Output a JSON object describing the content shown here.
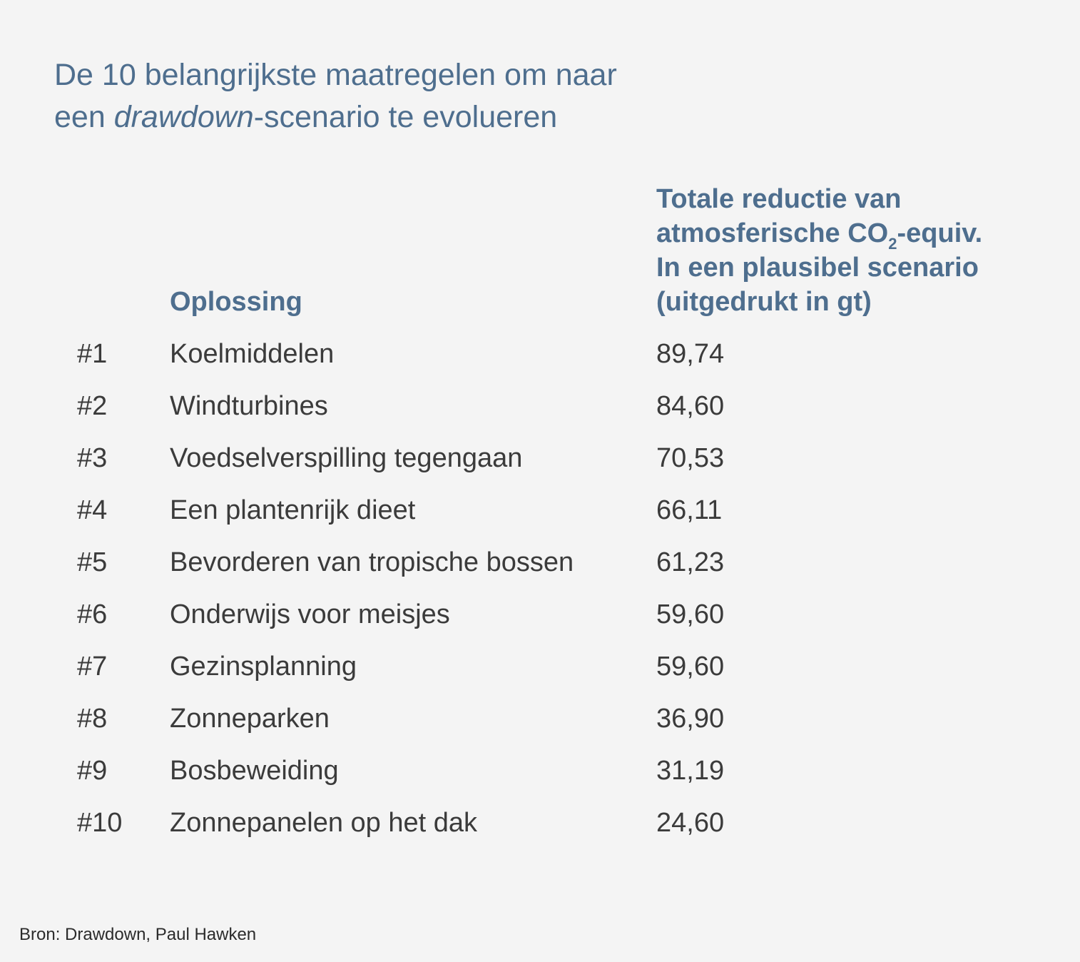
{
  "title": {
    "line1": "De 10 belangrijkste maatregelen om naar",
    "line2_pre": "een ",
    "line2_em": "drawdown",
    "line2_post": "-scenario te evolueren"
  },
  "table": {
    "header_solution": "Oplossing",
    "header_value": {
      "line1": "Totale reductie van",
      "line2_pre": "atmosferische CO",
      "line2_sub": "2",
      "line2_post": "-equiv.",
      "line3": "In een plausibel scenario",
      "line4": "(uitgedrukt in gt)"
    },
    "rows": [
      {
        "rank": "#1",
        "name": "Koelmiddelen",
        "value": "89,74"
      },
      {
        "rank": "#2",
        "name": "Windturbines",
        "value": "84,60"
      },
      {
        "rank": "#3",
        "name": "Voedselverspilling tegengaan",
        "value": "70,53"
      },
      {
        "rank": "#4",
        "name": "Een plantenrijk dieet",
        "value": "66,11"
      },
      {
        "rank": "#5",
        "name": "Bevorderen van tropische bossen",
        "value": "61,23"
      },
      {
        "rank": "#6",
        "name": "Onderwijs voor meisjes",
        "value": "59,60"
      },
      {
        "rank": "#7",
        "name": "Gezinsplanning",
        "value": "59,60"
      },
      {
        "rank": "#8",
        "name": "Zonneparken",
        "value": "36,90"
      },
      {
        "rank": "#9",
        "name": "Bosbeweiding",
        "value": "31,19"
      },
      {
        "rank": "#10",
        "name": "Zonnepanelen op het dak",
        "value": "24,60"
      }
    ]
  },
  "source": "Bron: Drawdown, Paul Hawken",
  "colors": {
    "background": "#f4f4f4",
    "accent": "#4e6e8e",
    "text": "#3b3b3b"
  }
}
